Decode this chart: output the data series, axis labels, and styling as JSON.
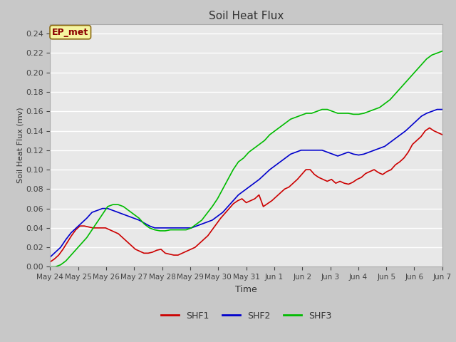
{
  "title": "Soil Heat Flux",
  "xlabel": "Time",
  "ylabel": "Soil Heat Flux (mv)",
  "ylim": [
    0.0,
    0.25
  ],
  "yticks": [
    0.0,
    0.02,
    0.04,
    0.06,
    0.08,
    0.1,
    0.12,
    0.14,
    0.16,
    0.18,
    0.2,
    0.22,
    0.24
  ],
  "xtick_labels": [
    "May 24",
    "May 25",
    "May 26",
    "May 27",
    "May 28",
    "May 29",
    "May 30",
    "May 31",
    "Jun 1",
    "Jun 2",
    "Jun 3",
    "Jun 4",
    "Jun 5",
    "Jun 6",
    "Jun 7"
  ],
  "annotation_text": "EP_met",
  "annotation_color": "#8B0000",
  "annotation_bg": "#f5f5a0",
  "annotation_border": "#8B6914",
  "fig_bg": "#c8c8c8",
  "plot_bg": "#e8e8e8",
  "line_colors": {
    "SHF1": "#cc0000",
    "SHF2": "#0000cc",
    "SHF3": "#00bb00"
  },
  "line_width": 1.2,
  "SHF1": [
    0.005,
    0.008,
    0.012,
    0.018,
    0.025,
    0.032,
    0.038,
    0.042,
    0.042,
    0.041,
    0.04,
    0.04,
    0.04,
    0.04,
    0.038,
    0.036,
    0.034,
    0.03,
    0.026,
    0.022,
    0.018,
    0.016,
    0.014,
    0.014,
    0.015,
    0.017,
    0.018,
    0.014,
    0.013,
    0.012,
    0.012,
    0.014,
    0.016,
    0.018,
    0.02,
    0.024,
    0.028,
    0.032,
    0.038,
    0.044,
    0.05,
    0.055,
    0.06,
    0.065,
    0.068,
    0.07,
    0.066,
    0.068,
    0.07,
    0.074,
    0.062,
    0.065,
    0.068,
    0.072,
    0.076,
    0.08,
    0.082,
    0.086,
    0.09,
    0.095,
    0.1,
    0.1,
    0.095,
    0.092,
    0.09,
    0.088,
    0.09,
    0.086,
    0.088,
    0.086,
    0.085,
    0.087,
    0.09,
    0.092,
    0.096,
    0.098,
    0.1,
    0.097,
    0.095,
    0.098,
    0.1,
    0.105,
    0.108,
    0.112,
    0.118,
    0.126,
    0.13,
    0.134,
    0.14,
    0.143,
    0.14,
    0.138,
    0.136
  ],
  "SHF2": [
    0.01,
    0.015,
    0.02,
    0.028,
    0.035,
    0.04,
    0.045,
    0.05,
    0.056,
    0.058,
    0.06,
    0.06,
    0.058,
    0.056,
    0.054,
    0.052,
    0.05,
    0.048,
    0.045,
    0.042,
    0.04,
    0.04,
    0.04,
    0.04,
    0.04,
    0.04,
    0.04,
    0.04,
    0.042,
    0.044,
    0.046,
    0.048,
    0.052,
    0.056,
    0.062,
    0.068,
    0.074,
    0.078,
    0.082,
    0.086,
    0.09,
    0.095,
    0.1,
    0.104,
    0.108,
    0.112,
    0.116,
    0.118,
    0.12,
    0.12,
    0.12,
    0.12,
    0.12,
    0.118,
    0.116,
    0.114,
    0.116,
    0.118,
    0.116,
    0.115,
    0.116,
    0.118,
    0.12,
    0.122,
    0.124,
    0.128,
    0.132,
    0.136,
    0.14,
    0.145,
    0.15,
    0.155,
    0.158,
    0.16,
    0.162,
    0.162
  ],
  "SHF3": [
    0.0,
    0.0,
    0.002,
    0.006,
    0.012,
    0.018,
    0.024,
    0.03,
    0.038,
    0.046,
    0.054,
    0.062,
    0.064,
    0.064,
    0.062,
    0.058,
    0.054,
    0.05,
    0.044,
    0.04,
    0.038,
    0.037,
    0.037,
    0.038,
    0.038,
    0.038,
    0.038,
    0.04,
    0.044,
    0.048,
    0.055,
    0.062,
    0.07,
    0.08,
    0.09,
    0.1,
    0.108,
    0.112,
    0.118,
    0.122,
    0.126,
    0.13,
    0.136,
    0.14,
    0.144,
    0.148,
    0.152,
    0.154,
    0.156,
    0.158,
    0.158,
    0.16,
    0.162,
    0.162,
    0.16,
    0.158,
    0.158,
    0.158,
    0.157,
    0.157,
    0.158,
    0.16,
    0.162,
    0.164,
    0.168,
    0.172,
    0.178,
    0.184,
    0.19,
    0.196,
    0.202,
    0.208,
    0.214,
    0.218,
    0.22,
    0.222
  ]
}
